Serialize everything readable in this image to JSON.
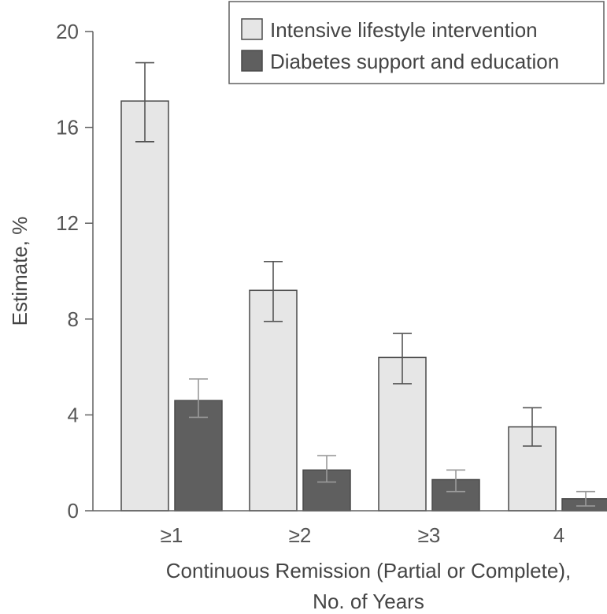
{
  "chart_data": {
    "type": "bar",
    "categories": [
      "≥1",
      "≥2",
      "≥3",
      "4"
    ],
    "series": [
      {
        "name": "Intensive lifestyle intervention",
        "values": [
          17.1,
          9.2,
          6.4,
          3.5
        ],
        "error_low": [
          15.4,
          7.9,
          5.3,
          2.7
        ],
        "error_high": [
          18.7,
          10.4,
          7.4,
          4.3
        ],
        "color": "#e6e6e6"
      },
      {
        "name": "Diabetes support and education",
        "values": [
          4.6,
          1.7,
          1.3,
          0.5
        ],
        "error_low": [
          3.9,
          1.2,
          0.8,
          0.2
        ],
        "error_high": [
          5.5,
          2.3,
          1.7,
          0.8
        ],
        "color": "#5f5f5f"
      }
    ],
    "title": "",
    "xlabel": "Continuous Remission (Partial or Complete),",
    "xlabel_line2": "No. of Years",
    "ylabel": "Estimate, %",
    "ylim": [
      0,
      20
    ],
    "yticks": [
      "0",
      "4",
      "8",
      "12",
      "16",
      "20"
    ],
    "ytick_values": [
      0,
      4,
      8,
      12,
      16,
      20
    ],
    "grid": false,
    "legend_position": "top-right"
  },
  "colors": {
    "axis": "#606060",
    "bar_edge": "#4a4a4a",
    "error_bar": "#555555"
  }
}
